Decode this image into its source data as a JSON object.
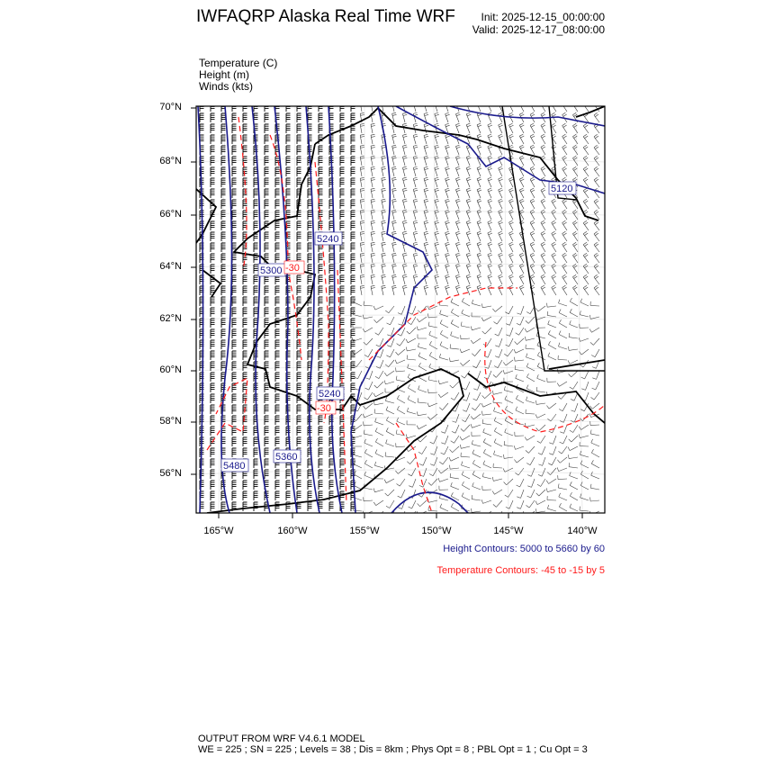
{
  "header": {
    "title": "IWFAQRP Alaska Real Time WRF",
    "init": "Init: 2025-12-15_00:00:00",
    "valid": "Valid: 2025-12-17_08:00:00"
  },
  "fields": [
    {
      "label": "Temperature   (C)"
    },
    {
      "label": "Height   (m)"
    },
    {
      "label": "Winds   (kts)"
    }
  ],
  "map": {
    "lat_labels": [
      "70°N",
      "68°N",
      "66°N",
      "64°N",
      "62°N",
      "60°N",
      "58°N",
      "56°N"
    ],
    "lon_labels": [
      "165°W",
      "160°W",
      "155°W",
      "150°W",
      "145°W",
      "140°W"
    ],
    "height_contour_labels": [
      "5240",
      "5300",
      "5240",
      "5360",
      "5480",
      "5120"
    ],
    "temperature_contour_labels": [
      "-30",
      "-30"
    ],
    "colors": {
      "height": "#1a1a8c",
      "temperature": "#ff1a1a",
      "coastline": "#000000",
      "barbs_west": "#000000",
      "barbs_east": "#333333"
    }
  },
  "legend": {
    "height": "Height Contours: 5000 to 5660 by 60",
    "temperature": "Temperature Contours: -45 to -15 by 5"
  },
  "footer": {
    "line1": "OUTPUT FROM WRF V4.6.1 MODEL",
    "line2": "WE = 225 ; SN = 225 ; Levels = 38 ; Dis = 8km ; Phys Opt = 8 ; PBL Opt = 1 ; Cu Opt = 3"
  }
}
